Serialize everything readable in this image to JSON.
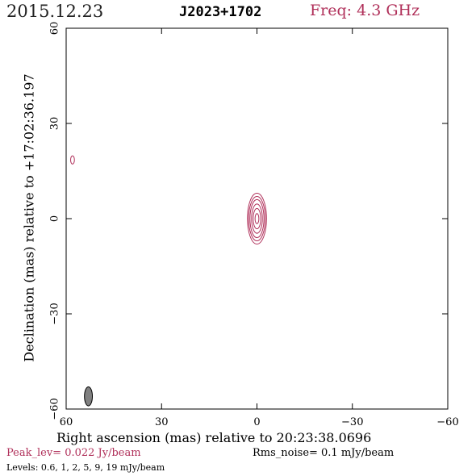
{
  "header": {
    "date": "2015.12.23",
    "source": "J2023+1702",
    "frequency": "Freq: 4.3 GHz"
  },
  "footer": {
    "peak": "Peak_lev=  0.022 Jy/beam",
    "rms": "Rms_noise=  0.1 mJy/beam",
    "levels": "Levels: 0.6,   1,   2,   5,   9,  19 mJy/beam"
  },
  "colors": {
    "contour": "#b0305a",
    "beam": "#808080",
    "axis": "#000000"
  },
  "chart_data": {
    "type": "contour",
    "title": "J2023+1702",
    "xlabel": "Right ascension (mas) relative to 20:23:38.0696",
    "ylabel": "Declination (mas) relative to +17:02:36.197",
    "xlim": [
      60,
      -60
    ],
    "ylim": [
      -60,
      60
    ],
    "xticks": [
      60,
      30,
      0,
      -30,
      -60
    ],
    "yticks": [
      -60,
      -30,
      0,
      30,
      60
    ],
    "xtick_labels": [
      "60",
      "30",
      "0",
      "−30",
      "−60"
    ],
    "ytick_labels": [
      "−60",
      "−30",
      "0",
      "30",
      "60"
    ],
    "levels_mjy": [
      0.6,
      1,
      2,
      5,
      9,
      19
    ],
    "peak_jy_per_beam": 0.022,
    "rms_mjy_per_beam": 0.1,
    "components": [
      {
        "name": "core",
        "x": 0,
        "y": 0,
        "contours": [
          {
            "level": 0.6,
            "rx": 3.0,
            "ry": 8.0
          },
          {
            "level": 1,
            "rx": 2.6,
            "ry": 7.0
          },
          {
            "level": 2,
            "rx": 2.2,
            "ry": 6.0
          },
          {
            "level": 5,
            "rx": 1.7,
            "ry": 4.6
          },
          {
            "level": 9,
            "rx": 1.2,
            "ry": 3.2
          },
          {
            "level": 19,
            "rx": 0.6,
            "ry": 1.6
          }
        ]
      },
      {
        "name": "spot",
        "x": 58,
        "y": 18.5,
        "contours": [
          {
            "level": 0.6,
            "rx": 0.6,
            "ry": 1.3
          }
        ]
      }
    ],
    "beam": {
      "x": 53,
      "y": -56,
      "major_mas": 6.0,
      "minor_mas": 2.5
    },
    "grid": false
  }
}
